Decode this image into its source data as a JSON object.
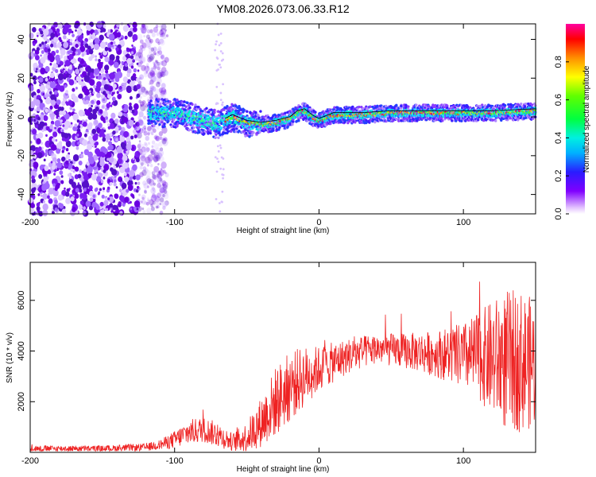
{
  "chart_data": [
    {
      "type": "heatmap",
      "title": "YM08.2026.073.06.33.R12",
      "xlabel": "Height of straight line (km)",
      "ylabel": "Frequency (Hz)",
      "xlim": [
        -200,
        150
      ],
      "ylim": [
        -50,
        48
      ],
      "xticks": [
        -200,
        -100,
        0,
        100
      ],
      "yticks": [
        -40,
        -20,
        0,
        20,
        40
      ],
      "colorbar": {
        "label": "Normalized spectral amplitude",
        "range": [
          0,
          1
        ],
        "ticks": [
          0.0,
          0.2,
          0.4,
          0.6,
          0.8
        ]
      },
      "ridge": {
        "description_points_x": [
          -120,
          -100,
          -80,
          -70,
          -60,
          -50,
          -40,
          -30,
          -20,
          -15,
          -10,
          -5,
          0,
          10,
          30,
          50,
          80,
          100,
          120,
          150
        ],
        "description_points_y": [
          2,
          2,
          -2,
          -4,
          0,
          -3,
          -4,
          -3,
          -1,
          2,
          3,
          0,
          -2,
          1,
          1,
          2,
          2,
          2,
          2,
          3
        ]
      },
      "noise_region_x": [
        -200,
        -115
      ]
    },
    {
      "type": "line",
      "xlabel": "Height of straight line (km)",
      "ylabel": "SNR (10 * v/v)",
      "xlim": [
        -200,
        150
      ],
      "ylim": [
        0,
        7500
      ],
      "xticks": [
        -200,
        -100,
        0,
        100
      ],
      "yticks": [
        2000,
        4000,
        6000
      ],
      "series": [
        {
          "name": "SNR",
          "color": "#ee2222",
          "envelope_x": [
            -200,
            -150,
            -120,
            -110,
            -100,
            -90,
            -80,
            -70,
            -60,
            -50,
            -40,
            -30,
            -20,
            -10,
            0,
            20,
            40,
            60,
            80,
            100,
            110,
            120,
            130,
            140,
            150
          ],
          "envelope_mean": [
            150,
            150,
            200,
            300,
            500,
            800,
            900,
            700,
            400,
            600,
            1200,
            2000,
            2600,
            3000,
            3300,
            3800,
            4100,
            4000,
            3900,
            3800,
            3800,
            3700,
            3600,
            3600,
            3500
          ],
          "envelope_spread": [
            120,
            120,
            150,
            200,
            350,
            500,
            500,
            500,
            350,
            600,
            1000,
            1400,
            1400,
            1200,
            900,
            700,
            600,
            700,
            900,
            1300,
            1700,
            2300,
            2800,
            2800,
            2500
          ]
        }
      ]
    }
  ]
}
